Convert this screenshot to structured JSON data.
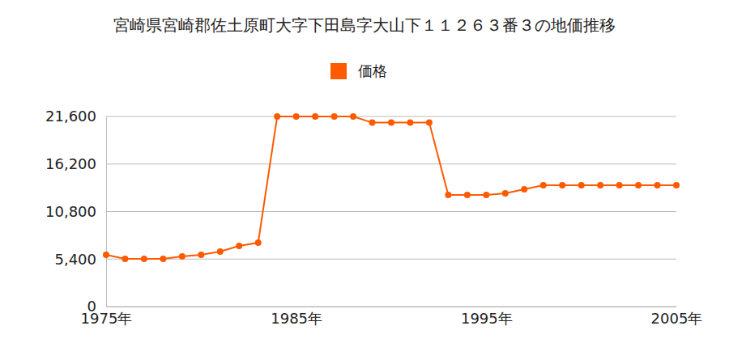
{
  "chart_data": {
    "type": "line",
    "title": "宮崎県宮崎郡佐土原町大字下田島字大山下１１２６３番３の地価推移",
    "x": [
      1975,
      1976,
      1977,
      1978,
      1979,
      1980,
      1981,
      1982,
      1983,
      1984,
      1985,
      1986,
      1987,
      1988,
      1989,
      1990,
      1991,
      1992,
      1993,
      1994,
      1995,
      1996,
      1997,
      1998,
      1999,
      2000,
      2001,
      2002,
      2003,
      2004,
      2005
    ],
    "series": [
      {
        "name": "価格",
        "color": "#ff5a00",
        "marker": "circle",
        "values": [
          5880,
          5420,
          5420,
          5420,
          5700,
          5880,
          6250,
          6890,
          7260,
          21600,
          21600,
          21600,
          21600,
          21600,
          20900,
          20900,
          20900,
          20900,
          12680,
          12680,
          12680,
          12870,
          13330,
          13790,
          13790,
          13790,
          13790,
          13790,
          13790,
          13790,
          13790
        ]
      }
    ],
    "xlim": [
      1975,
      2005
    ],
    "xticks": [
      {
        "value": 1975,
        "label": "1975年"
      },
      {
        "value": 1985,
        "label": "1985年"
      },
      {
        "value": 1995,
        "label": "1995年"
      },
      {
        "value": 2005,
        "label": "2005年"
      }
    ],
    "ylim": [
      0,
      21600
    ],
    "yticks": [
      0,
      {
        "value": 5400,
        "label": "5,400"
      },
      {
        "value": 10800,
        "label": "10,800"
      },
      {
        "value": 16200,
        "label": "16,200"
      },
      {
        "value": 21600,
        "label": "21,600"
      }
    ],
    "grid": true,
    "legend": "top"
  }
}
